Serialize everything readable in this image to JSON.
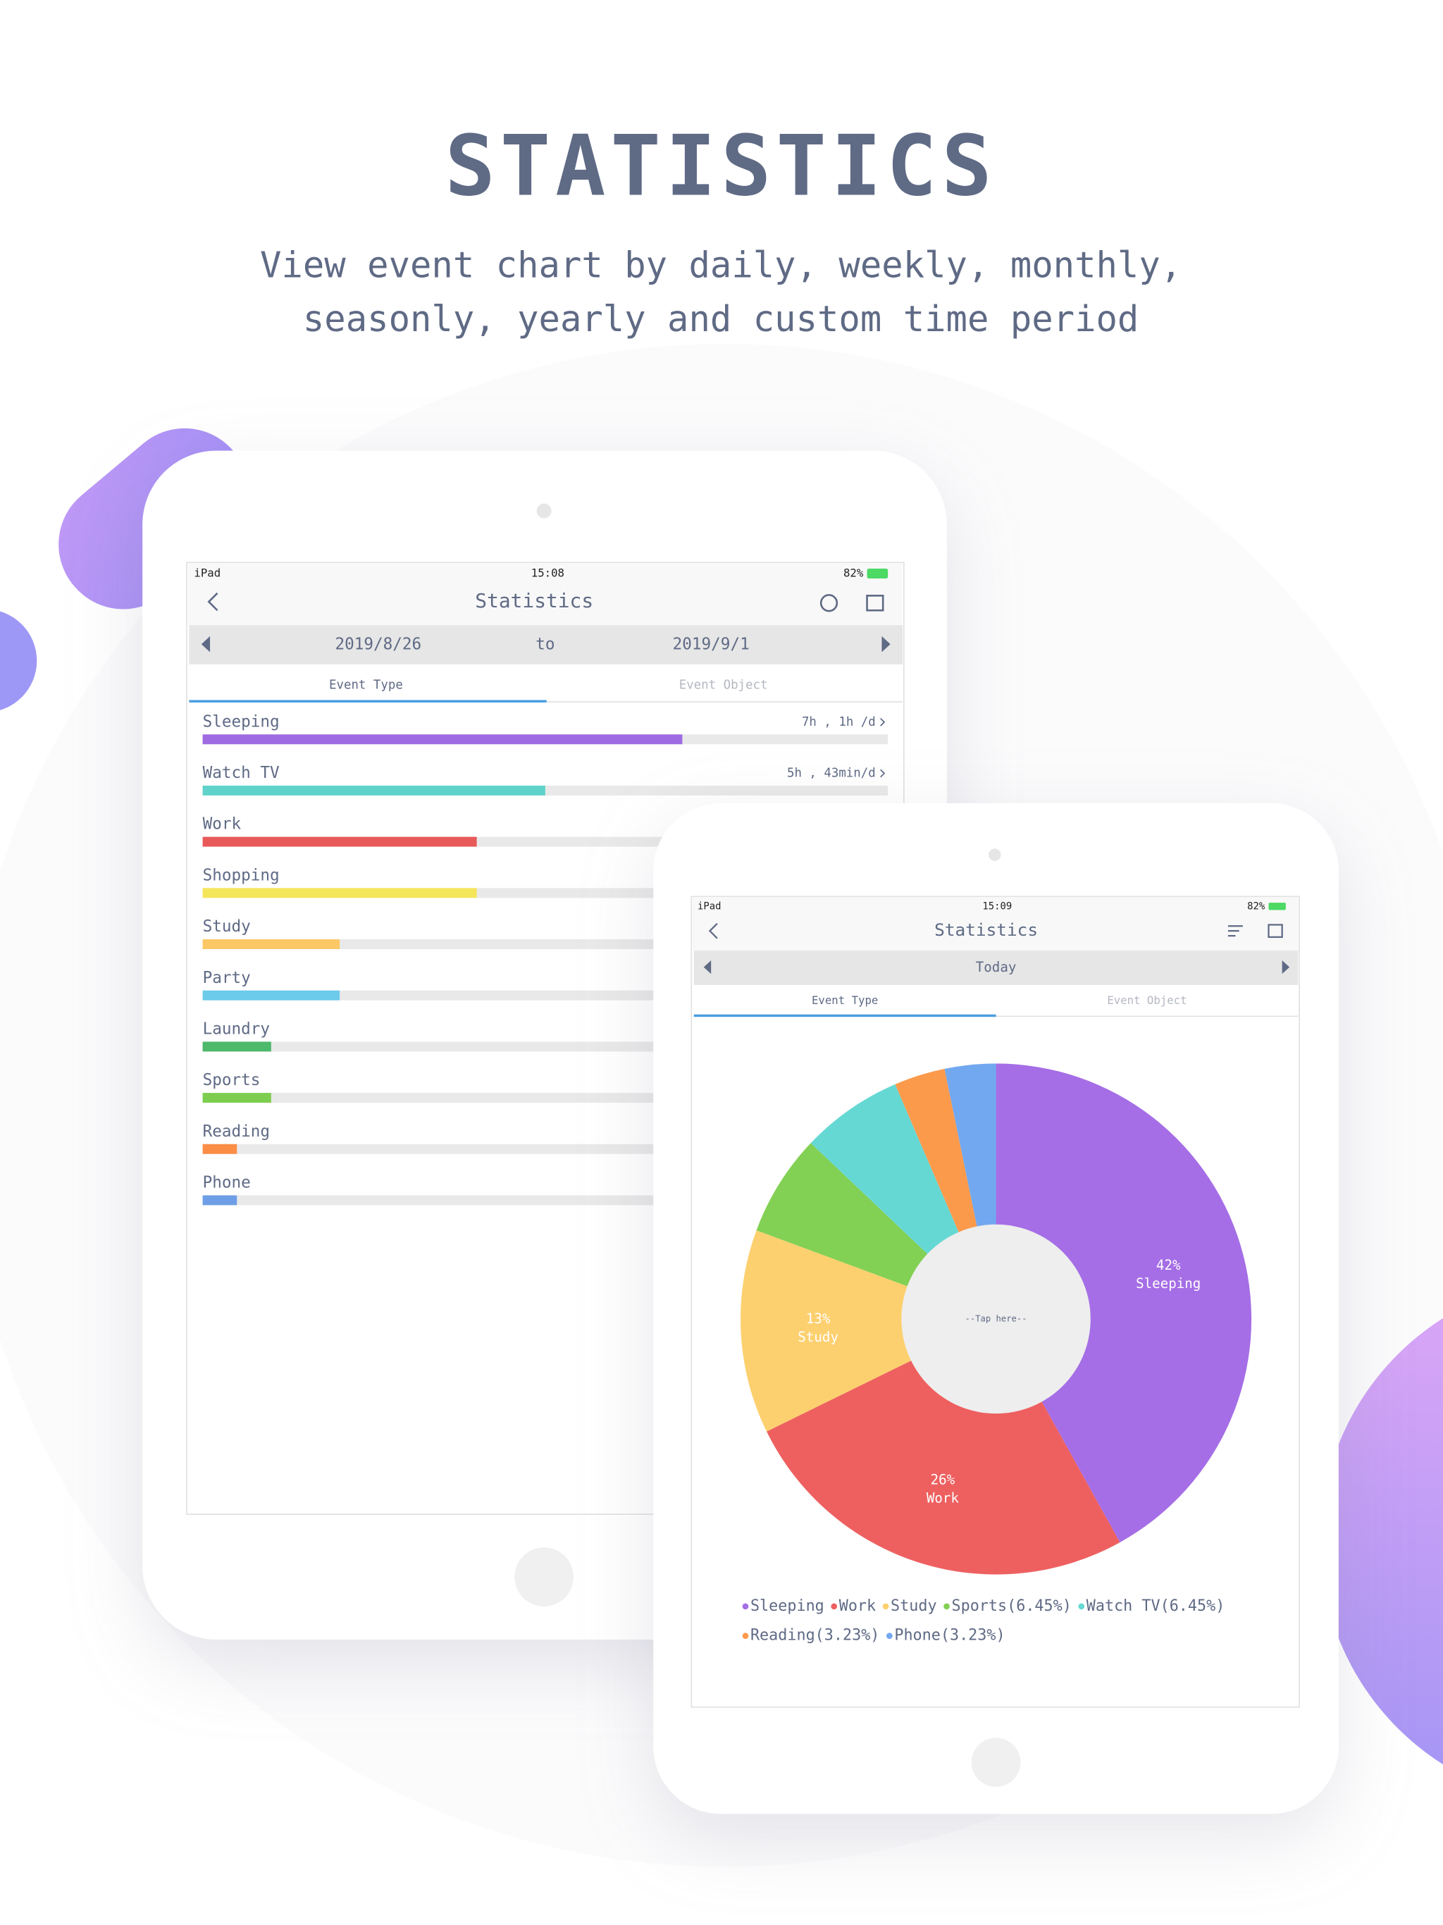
{
  "header": {
    "title": "STATISTICS",
    "subtitle": [
      "View event chart by daily, weekly, monthly,",
      "seasonly, yearly and custom time period"
    ]
  },
  "range_screen": {
    "status": {
      "device": "iPad",
      "time": "15:08",
      "battery": "82%"
    },
    "title": "Statistics",
    "date_from": "2019/8/26",
    "date_to_label": "to",
    "date_to": "2019/9/1",
    "tabs": [
      "Event Type",
      "Event Object"
    ],
    "xlim": [
      0,
      1
    ],
    "items": [
      {
        "name": "Sleeping",
        "color": "#9f6be3",
        "value": 0.7,
        "detail": "7h , 1h /d"
      },
      {
        "name": "Watch TV",
        "color": "#5fd3c9",
        "value": 0.5,
        "detail": "5h , 43min/d"
      },
      {
        "name": "Work",
        "color": "#e85a5a",
        "value": 0.4
      },
      {
        "name": "Shopping",
        "color": "#f5e55a",
        "value": 0.4
      },
      {
        "name": "Study",
        "color": "#fbc865",
        "value": 0.2
      },
      {
        "name": "Party",
        "color": "#6ccbea",
        "value": 0.2
      },
      {
        "name": "Laundry",
        "color": "#4cb96b",
        "value": 0.1
      },
      {
        "name": "Sports",
        "color": "#7dce4f",
        "value": 0.1
      },
      {
        "name": "Reading",
        "color": "#fb8d45",
        "value": 0.05
      },
      {
        "name": "Phone",
        "color": "#6e9fe6",
        "value": 0.05
      }
    ]
  },
  "today_screen": {
    "status": {
      "device": "iPad",
      "time": "15:09",
      "battery": "82%"
    },
    "title": "Statistics",
    "period": "Today",
    "tabs": [
      "Event Type",
      "Event Object"
    ],
    "chart_data": {
      "type": "pie",
      "center_label": "--Tap here--",
      "labels": [
        "Sleeping",
        "Work",
        "Study",
        "Sports(6.45%)",
        "Watch TV(6.45%)",
        "Reading(3.23%)",
        "Phone(3.23%)"
      ],
      "values": [
        41.94,
        25.81,
        12.9,
        6.45,
        6.45,
        3.23,
        3.23
      ],
      "value_labels": [
        "42%",
        "26%",
        "13%",
        null,
        null,
        null,
        null
      ],
      "colors": [
        "#a56ee6",
        "#ee6060",
        "#fdd06f",
        "#82d054",
        "#66d8d4",
        "#fc9a4c",
        "#72a8ef"
      ]
    }
  }
}
